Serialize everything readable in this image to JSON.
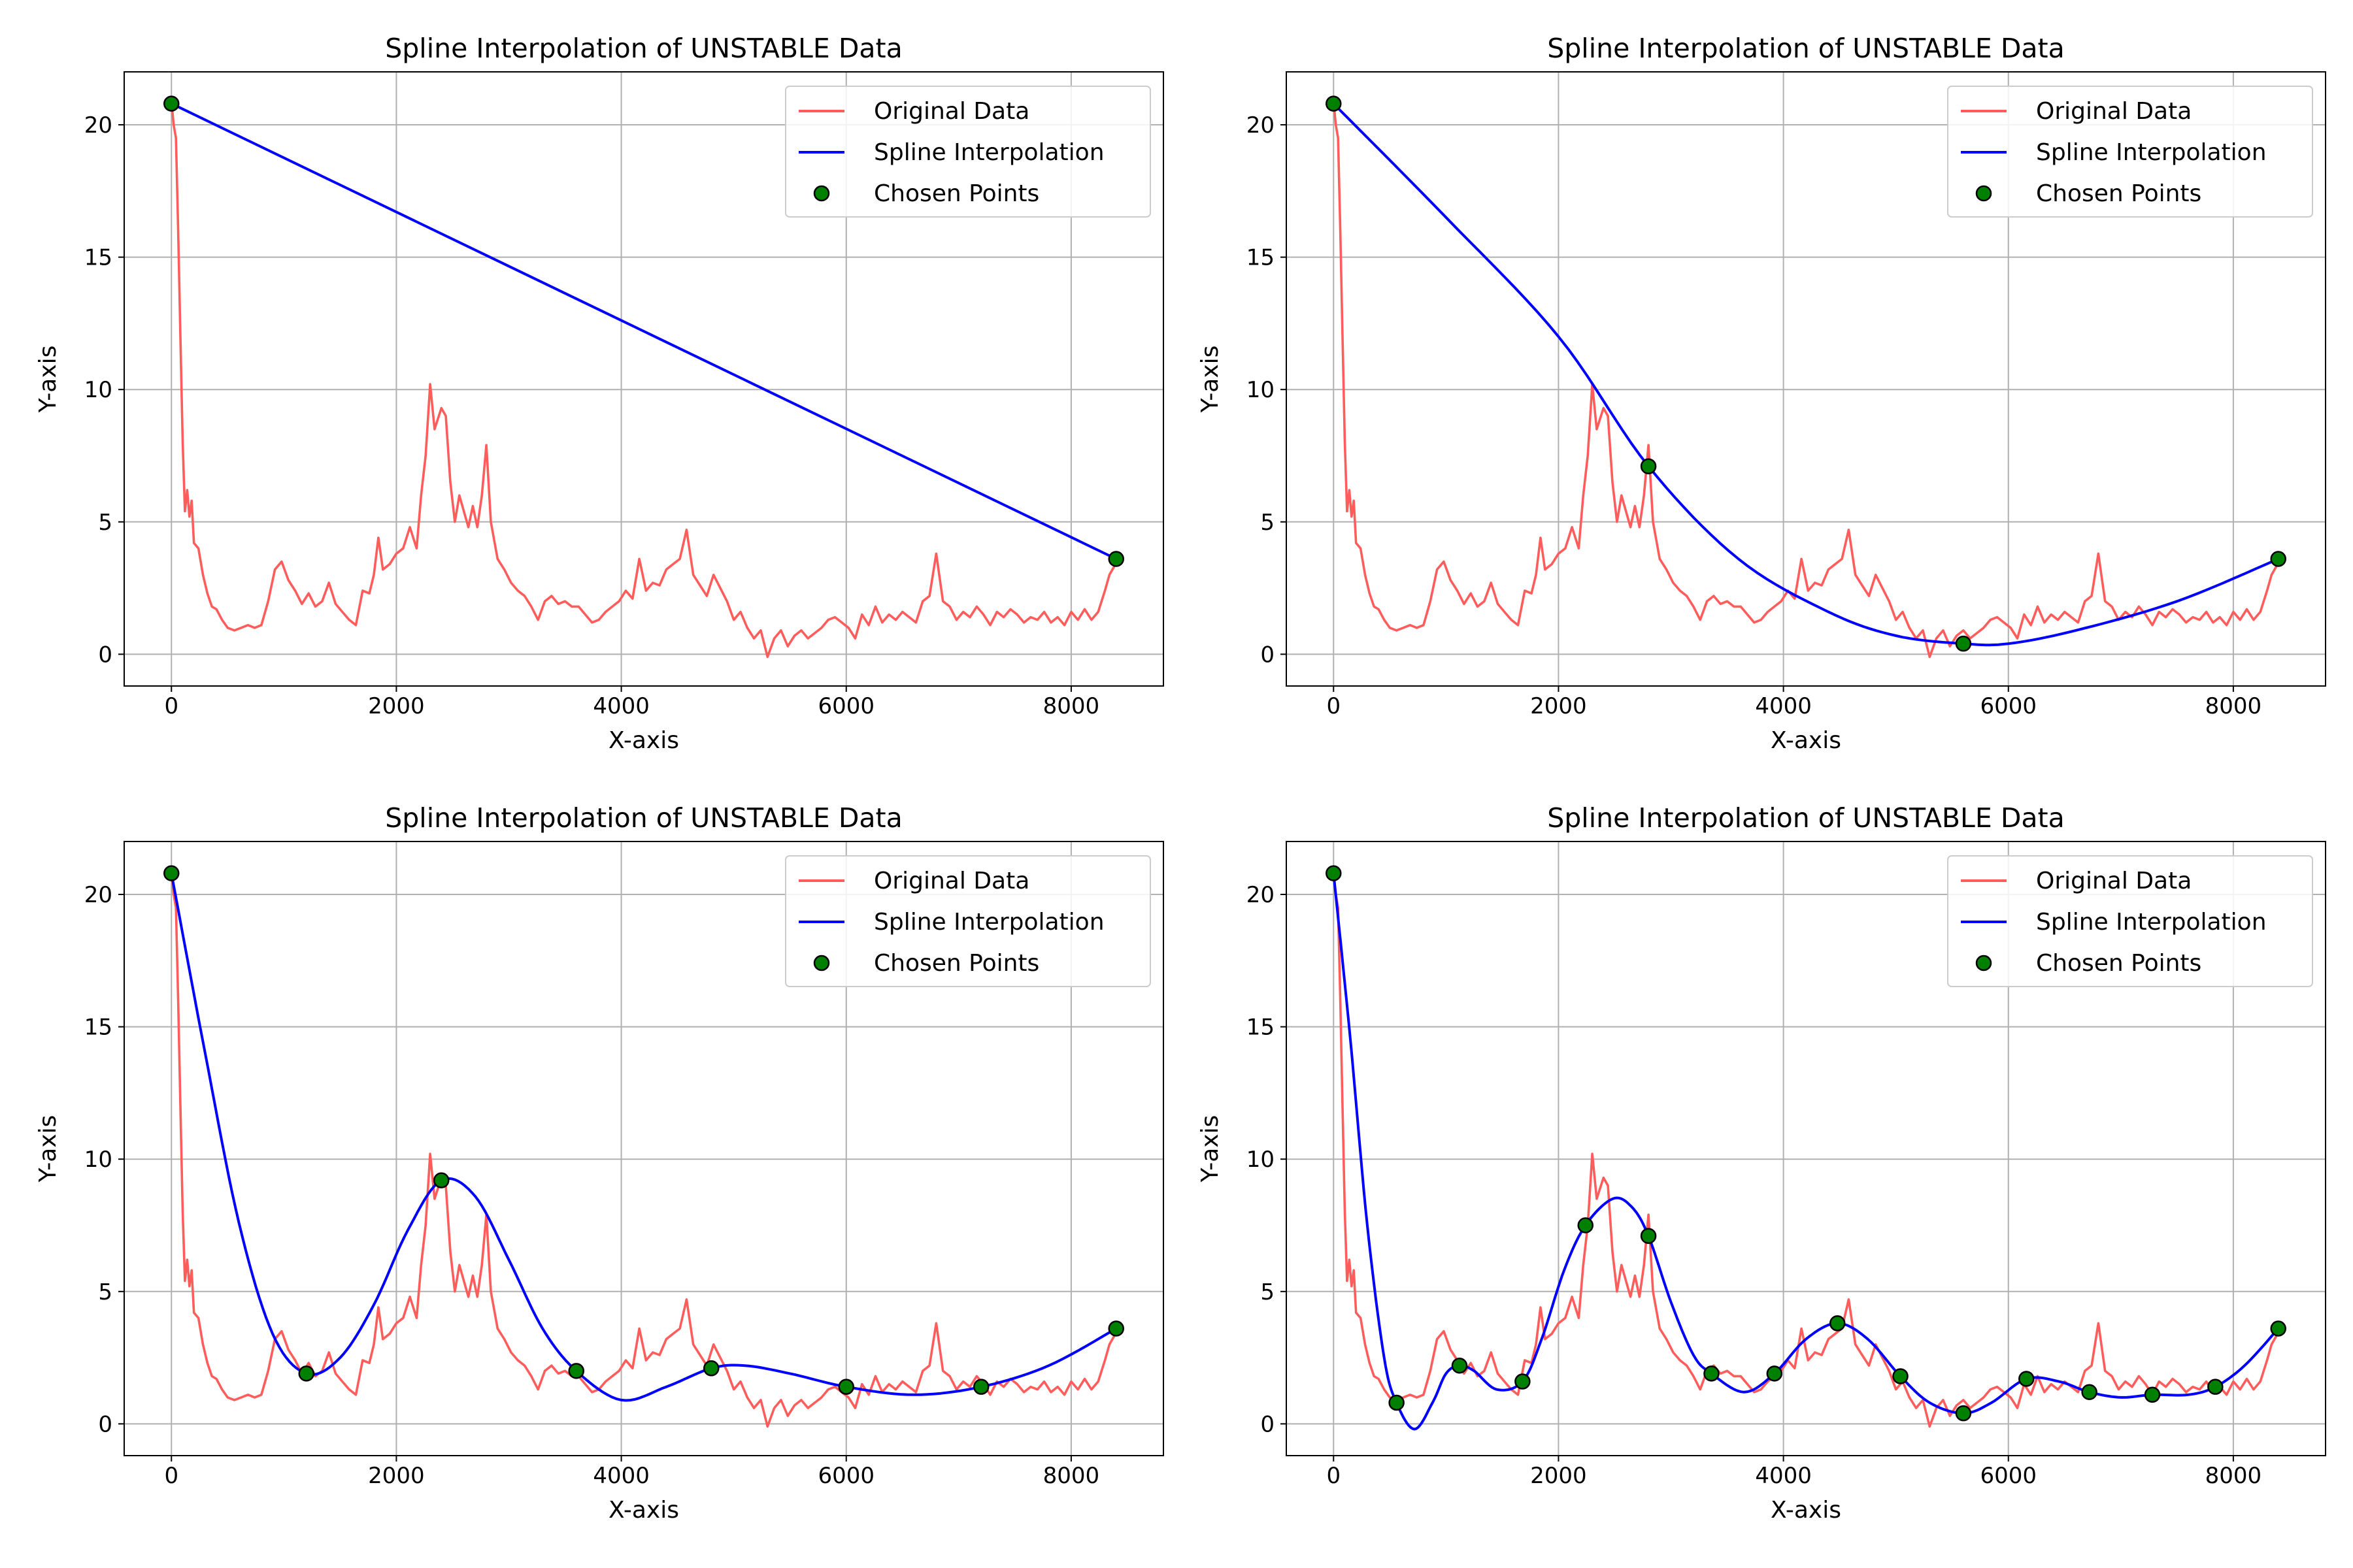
{
  "chart_data": [
    {
      "type": "line",
      "title": "Spline Interpolation of UNSTABLE Data",
      "xlabel": "X-axis",
      "ylabel": "Y-axis",
      "xlim": [
        -420,
        8820
      ],
      "ylim": [
        -1.2,
        22.0
      ],
      "xticks": [
        0,
        2000,
        4000,
        6000,
        8000
      ],
      "yticks": [
        0,
        5,
        10,
        15,
        20
      ],
      "grid": true,
      "legend": "top-right",
      "legend_entries": [
        "Original Data",
        "Spline Interpolation",
        "Chosen Points"
      ],
      "chosen_points": [
        [
          0,
          20.8
        ],
        [
          8400,
          3.6
        ]
      ],
      "spline": [
        [
          0,
          20.8
        ],
        [
          8400,
          3.6
        ]
      ]
    },
    {
      "type": "line",
      "title": "Spline Interpolation of UNSTABLE Data",
      "xlabel": "X-axis",
      "ylabel": "Y-axis",
      "xlim": [
        -420,
        8820
      ],
      "ylim": [
        -1.2,
        22.0
      ],
      "xticks": [
        0,
        2000,
        4000,
        6000,
        8000
      ],
      "yticks": [
        0,
        5,
        10,
        15,
        20
      ],
      "grid": true,
      "legend": "top-right",
      "legend_entries": [
        "Original Data",
        "Spline Interpolation",
        "Chosen Points"
      ],
      "chosen_points": [
        [
          0,
          20.8
        ],
        [
          2800,
          7.1
        ],
        [
          5600,
          0.4
        ],
        [
          8400,
          3.6
        ]
      ],
      "spline": [
        [
          0,
          20.8
        ],
        [
          1000,
          16.5
        ],
        [
          2000,
          12.0
        ],
        [
          2800,
          7.1
        ],
        [
          3600,
          3.6
        ],
        [
          4400,
          1.6
        ],
        [
          5000,
          0.7
        ],
        [
          5600,
          0.4
        ],
        [
          6000,
          0.4
        ],
        [
          6600,
          0.9
        ],
        [
          7500,
          2.0
        ],
        [
          8400,
          3.6
        ]
      ]
    },
    {
      "type": "line",
      "title": "Spline Interpolation of UNSTABLE Data",
      "xlabel": "X-axis",
      "ylabel": "Y-axis",
      "xlim": [
        -420,
        8820
      ],
      "ylim": [
        -1.2,
        22.0
      ],
      "xticks": [
        0,
        2000,
        4000,
        6000,
        8000
      ],
      "yticks": [
        0,
        5,
        10,
        15,
        20
      ],
      "grid": true,
      "legend": "top-right",
      "legend_entries": [
        "Original Data",
        "Spline Interpolation",
        "Chosen Points"
      ],
      "chosen_points": [
        [
          0,
          20.8
        ],
        [
          1200,
          1.9
        ],
        [
          2400,
          9.2
        ],
        [
          3600,
          2.0
        ],
        [
          4800,
          2.1
        ],
        [
          6000,
          1.4
        ],
        [
          7200,
          1.4
        ],
        [
          8400,
          3.6
        ]
      ],
      "spline": [
        [
          0,
          20.8
        ],
        [
          300,
          14.0
        ],
        [
          600,
          7.6
        ],
        [
          900,
          3.4
        ],
        [
          1200,
          1.9
        ],
        [
          1500,
          2.5
        ],
        [
          1800,
          4.5
        ],
        [
          2100,
          7.3
        ],
        [
          2400,
          9.2
        ],
        [
          2700,
          8.6
        ],
        [
          3000,
          6.2
        ],
        [
          3300,
          3.6
        ],
        [
          3600,
          2.0
        ],
        [
          4000,
          0.9
        ],
        [
          4400,
          1.4
        ],
        [
          4800,
          2.1
        ],
        [
          5100,
          2.2
        ],
        [
          5500,
          1.9
        ],
        [
          6000,
          1.4
        ],
        [
          6600,
          1.1
        ],
        [
          7200,
          1.4
        ],
        [
          7800,
          2.2
        ],
        [
          8400,
          3.6
        ]
      ]
    },
    {
      "type": "line",
      "title": "Spline Interpolation of UNSTABLE Data",
      "xlabel": "X-axis",
      "ylabel": "Y-axis",
      "xlim": [
        -420,
        8820
      ],
      "ylim": [
        -1.2,
        22.0
      ],
      "xticks": [
        0,
        2000,
        4000,
        6000,
        8000
      ],
      "yticks": [
        0,
        5,
        10,
        15,
        20
      ],
      "grid": true,
      "legend": "top-right",
      "legend_entries": [
        "Original Data",
        "Spline Interpolation",
        "Chosen Points"
      ],
      "chosen_points": [
        [
          0,
          20.8
        ],
        [
          560,
          0.8
        ],
        [
          1120,
          2.2
        ],
        [
          1680,
          1.6
        ],
        [
          2240,
          7.5
        ],
        [
          2800,
          7.1
        ],
        [
          3360,
          1.9
        ],
        [
          3920,
          1.9
        ],
        [
          4480,
          3.8
        ],
        [
          5040,
          1.8
        ],
        [
          5600,
          0.4
        ],
        [
          6160,
          1.7
        ],
        [
          6720,
          1.2
        ],
        [
          7280,
          1.1
        ],
        [
          7840,
          1.4
        ],
        [
          8400,
          3.6
        ]
      ],
      "spline": [
        [
          0,
          20.8
        ],
        [
          150,
          14.5
        ],
        [
          300,
          7.5
        ],
        [
          450,
          2.5
        ],
        [
          560,
          0.8
        ],
        [
          720,
          -0.2
        ],
        [
          880,
          0.8
        ],
        [
          1000,
          1.9
        ],
        [
          1120,
          2.2
        ],
        [
          1250,
          2.0
        ],
        [
          1450,
          1.3
        ],
        [
          1680,
          1.6
        ],
        [
          1850,
          3.2
        ],
        [
          2050,
          5.8
        ],
        [
          2240,
          7.5
        ],
        [
          2480,
          8.5
        ],
        [
          2650,
          8.2
        ],
        [
          2800,
          7.1
        ],
        [
          3000,
          4.6
        ],
        [
          3200,
          2.6
        ],
        [
          3360,
          1.9
        ],
        [
          3650,
          1.2
        ],
        [
          3920,
          1.9
        ],
        [
          4200,
          3.2
        ],
        [
          4480,
          3.8
        ],
        [
          4750,
          3.2
        ],
        [
          5040,
          1.8
        ],
        [
          5300,
          0.8
        ],
        [
          5600,
          0.4
        ],
        [
          5850,
          0.8
        ],
        [
          6160,
          1.7
        ],
        [
          6450,
          1.6
        ],
        [
          6720,
          1.2
        ],
        [
          7000,
          1.0
        ],
        [
          7280,
          1.1
        ],
        [
          7600,
          1.1
        ],
        [
          7840,
          1.4
        ],
        [
          8100,
          2.2
        ],
        [
          8400,
          3.6
        ]
      ]
    }
  ],
  "original_data": [
    [
      0,
      20.9
    ],
    [
      20,
      20.0
    ],
    [
      40,
      19.5
    ],
    [
      60,
      16.0
    ],
    [
      80,
      12.0
    ],
    [
      100,
      8.0
    ],
    [
      120,
      5.4
    ],
    [
      140,
      6.2
    ],
    [
      160,
      5.2
    ],
    [
      180,
      5.8
    ],
    [
      200,
      4.2
    ],
    [
      240,
      4.0
    ],
    [
      280,
      3.0
    ],
    [
      320,
      2.3
    ],
    [
      360,
      1.8
    ],
    [
      400,
      1.7
    ],
    [
      450,
      1.3
    ],
    [
      500,
      1.0
    ],
    [
      560,
      0.9
    ],
    [
      620,
      1.0
    ],
    [
      680,
      1.1
    ],
    [
      740,
      1.0
    ],
    [
      800,
      1.1
    ],
    [
      860,
      2.0
    ],
    [
      920,
      3.2
    ],
    [
      980,
      3.5
    ],
    [
      1040,
      2.8
    ],
    [
      1100,
      2.4
    ],
    [
      1160,
      1.9
    ],
    [
      1220,
      2.3
    ],
    [
      1280,
      1.8
    ],
    [
      1340,
      2.0
    ],
    [
      1400,
      2.7
    ],
    [
      1460,
      1.9
    ],
    [
      1520,
      1.6
    ],
    [
      1580,
      1.3
    ],
    [
      1640,
      1.1
    ],
    [
      1700,
      2.4
    ],
    [
      1760,
      2.3
    ],
    [
      1800,
      3.0
    ],
    [
      1840,
      4.4
    ],
    [
      1880,
      3.2
    ],
    [
      1940,
      3.4
    ],
    [
      2000,
      3.8
    ],
    [
      2060,
      4.0
    ],
    [
      2120,
      4.8
    ],
    [
      2180,
      4.0
    ],
    [
      2220,
      6.0
    ],
    [
      2260,
      7.5
    ],
    [
      2300,
      10.2
    ],
    [
      2340,
      8.5
    ],
    [
      2400,
      9.3
    ],
    [
      2440,
      9.0
    ],
    [
      2480,
      6.5
    ],
    [
      2520,
      5.0
    ],
    [
      2560,
      6.0
    ],
    [
      2600,
      5.4
    ],
    [
      2640,
      4.8
    ],
    [
      2680,
      5.6
    ],
    [
      2720,
      4.8
    ],
    [
      2760,
      6.0
    ],
    [
      2800,
      7.9
    ],
    [
      2840,
      5.0
    ],
    [
      2900,
      3.6
    ],
    [
      2960,
      3.2
    ],
    [
      3020,
      2.7
    ],
    [
      3080,
      2.4
    ],
    [
      3140,
      2.2
    ],
    [
      3200,
      1.8
    ],
    [
      3260,
      1.3
    ],
    [
      3320,
      2.0
    ],
    [
      3380,
      2.2
    ],
    [
      3440,
      1.9
    ],
    [
      3500,
      2.0
    ],
    [
      3560,
      1.8
    ],
    [
      3620,
      1.8
    ],
    [
      3680,
      1.5
    ],
    [
      3740,
      1.2
    ],
    [
      3800,
      1.3
    ],
    [
      3860,
      1.6
    ],
    [
      3920,
      1.8
    ],
    [
      3980,
      2.0
    ],
    [
      4040,
      2.4
    ],
    [
      4100,
      2.1
    ],
    [
      4160,
      3.6
    ],
    [
      4220,
      2.4
    ],
    [
      4280,
      2.7
    ],
    [
      4340,
      2.6
    ],
    [
      4400,
      3.2
    ],
    [
      4460,
      3.4
    ],
    [
      4520,
      3.6
    ],
    [
      4580,
      4.7
    ],
    [
      4640,
      3.0
    ],
    [
      4700,
      2.6
    ],
    [
      4760,
      2.2
    ],
    [
      4820,
      3.0
    ],
    [
      4880,
      2.5
    ],
    [
      4940,
      2.0
    ],
    [
      5000,
      1.3
    ],
    [
      5060,
      1.6
    ],
    [
      5120,
      1.0
    ],
    [
      5180,
      0.6
    ],
    [
      5240,
      0.9
    ],
    [
      5300,
      -0.1
    ],
    [
      5360,
      0.6
    ],
    [
      5420,
      0.9
    ],
    [
      5480,
      0.3
    ],
    [
      5540,
      0.7
    ],
    [
      5600,
      0.9
    ],
    [
      5660,
      0.6
    ],
    [
      5720,
      0.8
    ],
    [
      5780,
      1.0
    ],
    [
      5840,
      1.3
    ],
    [
      5900,
      1.4
    ],
    [
      5960,
      1.2
    ],
    [
      6020,
      1.0
    ],
    [
      6080,
      0.6
    ],
    [
      6140,
      1.5
    ],
    [
      6200,
      1.1
    ],
    [
      6260,
      1.8
    ],
    [
      6320,
      1.2
    ],
    [
      6380,
      1.5
    ],
    [
      6440,
      1.3
    ],
    [
      6500,
      1.6
    ],
    [
      6560,
      1.4
    ],
    [
      6620,
      1.2
    ],
    [
      6680,
      2.0
    ],
    [
      6740,
      2.2
    ],
    [
      6800,
      3.8
    ],
    [
      6860,
      2.0
    ],
    [
      6920,
      1.8
    ],
    [
      6980,
      1.3
    ],
    [
      7040,
      1.6
    ],
    [
      7100,
      1.4
    ],
    [
      7160,
      1.8
    ],
    [
      7220,
      1.5
    ],
    [
      7280,
      1.1
    ],
    [
      7340,
      1.6
    ],
    [
      7400,
      1.4
    ],
    [
      7460,
      1.7
    ],
    [
      7520,
      1.5
    ],
    [
      7580,
      1.2
    ],
    [
      7640,
      1.4
    ],
    [
      7700,
      1.3
    ],
    [
      7760,
      1.6
    ],
    [
      7820,
      1.2
    ],
    [
      7880,
      1.4
    ],
    [
      7940,
      1.1
    ],
    [
      8000,
      1.6
    ],
    [
      8060,
      1.3
    ],
    [
      8120,
      1.7
    ],
    [
      8180,
      1.3
    ],
    [
      8240,
      1.6
    ],
    [
      8300,
      2.4
    ],
    [
      8340,
      3.0
    ],
    [
      8380,
      3.3
    ],
    [
      8400,
      3.6
    ]
  ],
  "colors": {
    "original": "#ff5c5c",
    "spline": "#0000ff",
    "points": "#008000",
    "grid": "#b0b0b0"
  }
}
